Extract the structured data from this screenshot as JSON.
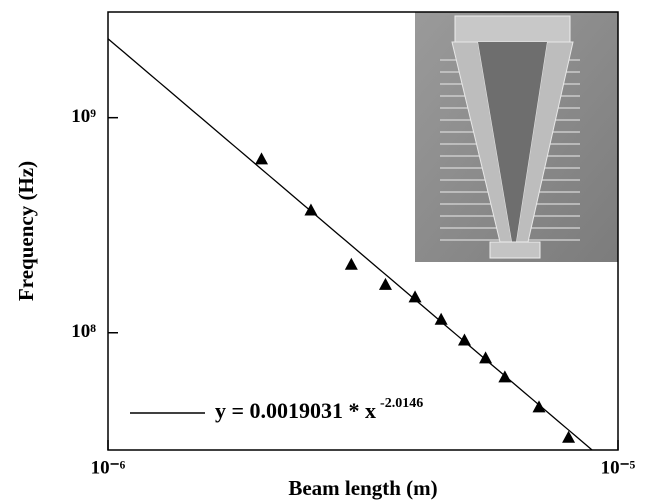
{
  "chart_data": {
    "type": "scatter",
    "x_label": "Beam length (m)",
    "y_label": "Frequency (Hz)",
    "log_x": true,
    "log_y": true,
    "x": [
      2e-06,
      2.5e-06,
      3e-06,
      3.5e-06,
      4e-06,
      4.5e-06,
      5e-06,
      5.5e-06,
      6e-06,
      7e-06,
      8e-06
    ],
    "values": [
      640000000,
      370000000,
      207000000,
      167000000,
      146000000,
      115000000,
      92000000,
      76000000,
      62000000,
      45000000,
      32500000
    ],
    "color": "#000000",
    "fit": {
      "name": "y = 0.0019031 * x",
      "coefficient": 0.0019031,
      "exponent": -2.0146,
      "color": "#000000"
    },
    "xlim": [
      1e-06,
      1e-05
    ],
    "ylim": [
      28500000,
      3100000000
    ],
    "xticks": [
      {
        "value": 1e-06,
        "label": "10⁻⁶"
      },
      {
        "value": 1e-05,
        "label": "10⁻⁵"
      }
    ],
    "yticks": [
      {
        "value": 100000000,
        "label": "10⁸"
      },
      {
        "value": 1000000000,
        "label": "10⁹"
      }
    ]
  }
}
